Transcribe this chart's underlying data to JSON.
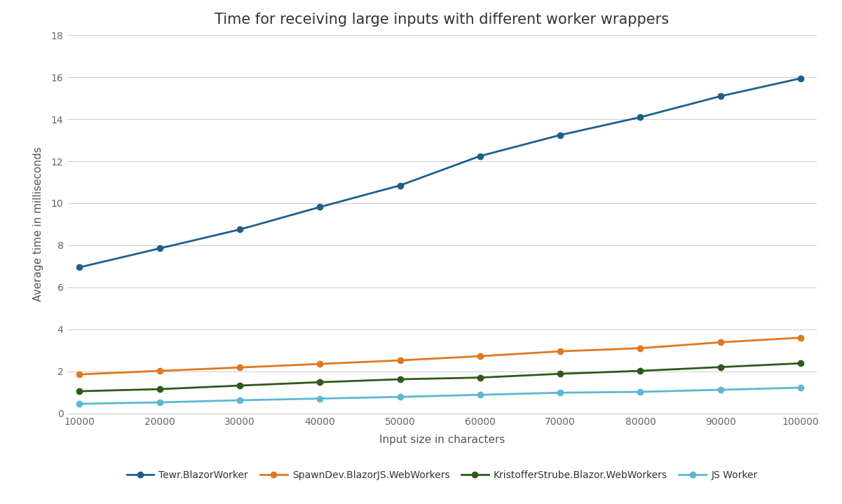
{
  "title": "Time for receiving large inputs with different worker wrappers",
  "xlabel": "Input size in characters",
  "ylabel": "Average time in milliseconds",
  "x": [
    10000,
    20000,
    30000,
    40000,
    50000,
    60000,
    70000,
    80000,
    90000,
    100000
  ],
  "series": [
    {
      "label": "Tewr.BlazorWorker",
      "color": "#1f5f8b",
      "marker": "o",
      "markersize": 6,
      "linewidth": 2.0,
      "values": [
        6.95,
        7.85,
        8.75,
        9.82,
        10.85,
        12.25,
        13.25,
        14.1,
        15.1,
        15.95
      ]
    },
    {
      "label": "SpawnDev.BlazorJS.WebWorkers",
      "color": "#e07820",
      "marker": "o",
      "markersize": 6,
      "linewidth": 2.0,
      "values": [
        1.85,
        2.02,
        2.18,
        2.35,
        2.52,
        2.72,
        2.95,
        3.1,
        3.38,
        3.6
      ]
    },
    {
      "label": "KristofferStrube.Blazor.WebWorkers",
      "color": "#2d5a1b",
      "marker": "o",
      "markersize": 6,
      "linewidth": 2.0,
      "values": [
        1.05,
        1.15,
        1.32,
        1.48,
        1.62,
        1.7,
        1.88,
        2.02,
        2.2,
        2.38
      ]
    },
    {
      "label": "JS Worker",
      "color": "#5bb8d4",
      "marker": "o",
      "markersize": 6,
      "linewidth": 2.0,
      "values": [
        0.45,
        0.52,
        0.62,
        0.7,
        0.78,
        0.88,
        0.98,
        1.02,
        1.12,
        1.22
      ]
    }
  ],
  "xlim": [
    8500,
    102000
  ],
  "ylim": [
    0,
    18
  ],
  "yticks": [
    0,
    2,
    4,
    6,
    8,
    10,
    12,
    14,
    16,
    18
  ],
  "xticks": [
    10000,
    20000,
    30000,
    40000,
    50000,
    60000,
    70000,
    80000,
    90000,
    100000
  ],
  "background_color": "#ffffff",
  "plot_bg_color": "#ffffff",
  "grid_color": "#d0d0d0",
  "title_fontsize": 15,
  "axis_label_fontsize": 11,
  "tick_fontsize": 10,
  "legend_fontsize": 10
}
